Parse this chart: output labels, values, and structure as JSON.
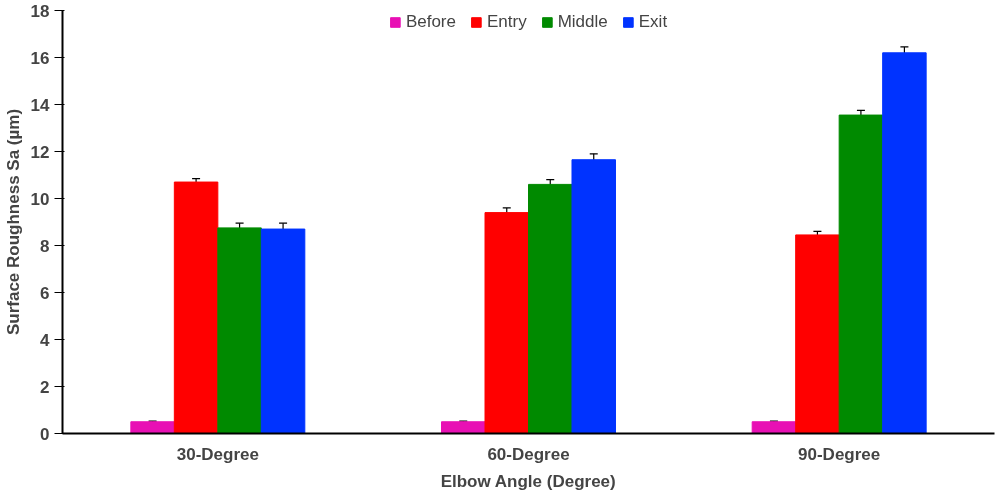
{
  "chart_data": {
    "type": "bar",
    "xlabel": "Elbow Angle (Degree)",
    "ylabel": "Surface Roughness Sa (µm)",
    "categories": [
      "30-Degree",
      "60-Degree",
      "90-Degree"
    ],
    "series": [
      {
        "name": "Before",
        "color": "#e810b4",
        "values": [
          0.5,
          0.5,
          0.5
        ],
        "errors": [
          0.03,
          0.03,
          0.03
        ]
      },
      {
        "name": "Entry",
        "color": "#ff0000",
        "values": [
          10.7,
          9.4,
          8.45
        ],
        "errors": [
          0.15,
          0.2,
          0.15
        ]
      },
      {
        "name": "Middle",
        "color": "#008a00",
        "values": [
          8.75,
          10.6,
          13.55
        ],
        "errors": [
          0.2,
          0.2,
          0.2
        ]
      },
      {
        "name": "Exit",
        "color": "#0033ff",
        "values": [
          8.7,
          11.65,
          16.2
        ],
        "errors": [
          0.25,
          0.25,
          0.25
        ]
      }
    ],
    "ylim": [
      0,
      18
    ],
    "yticks": [
      0,
      2,
      4,
      6,
      8,
      10,
      12,
      14,
      16,
      18
    ],
    "grid": false,
    "legend": "top"
  }
}
